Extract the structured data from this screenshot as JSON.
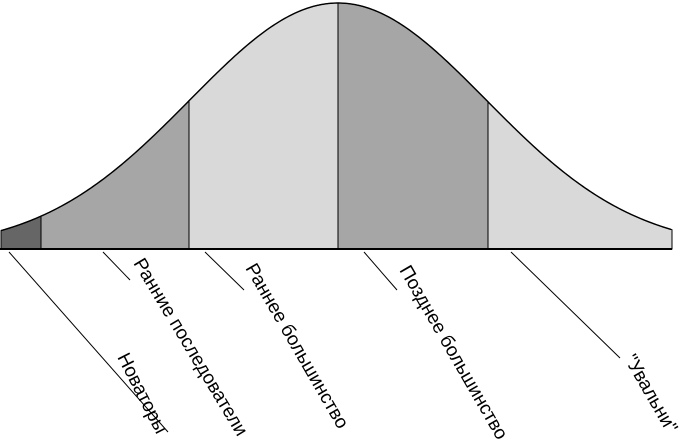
{
  "diagram": {
    "segments": [
      {
        "key": "innovators",
        "label": "Новаторы",
        "fill": "#666666"
      },
      {
        "key": "early_adopters",
        "label": "Ранние последователи",
        "fill": "#a6a6a6"
      },
      {
        "key": "early_majority",
        "label": "Раннее большинство",
        "fill": "#d9d9d9"
      },
      {
        "key": "late_majority",
        "label": "Позднее большинство",
        "fill": "#a6a6a6"
      },
      {
        "key": "laggards",
        "label": "\"Увальни\"",
        "fill": "#d9d9d9"
      }
    ],
    "outline_color": "#000000"
  }
}
